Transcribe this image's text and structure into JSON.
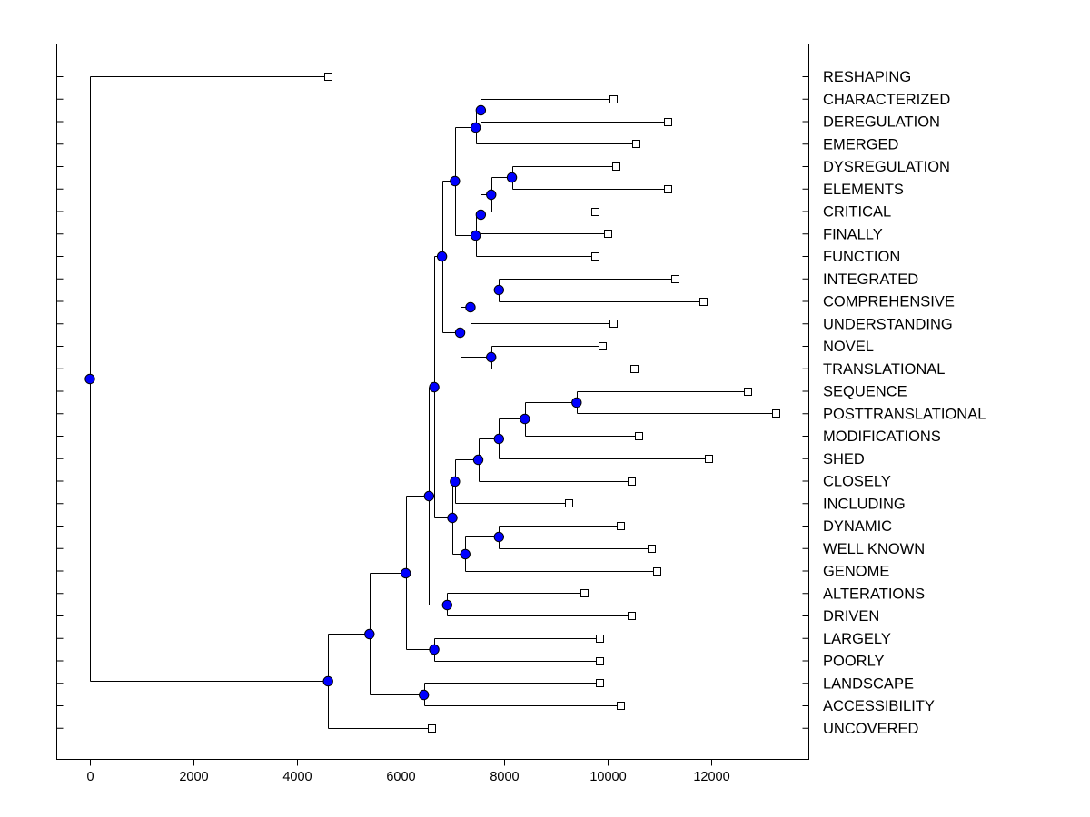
{
  "chart_data": {
    "type": "dendrogram",
    "title": "",
    "xlabel": "",
    "ylabel": "",
    "xlim": [
      -650,
      13900
    ],
    "xticks": [
      0,
      2000,
      4000,
      6000,
      8000,
      10000,
      12000
    ],
    "xtick_labels": [
      "0",
      "2000",
      "4000",
      "6000",
      "8000",
      "10000",
      "12000"
    ],
    "colors": {
      "node": "#0000ff",
      "node_edge": "#000000",
      "line": "#000000",
      "leaf": "#ffffff"
    },
    "leaves": [
      {
        "label": "RESHAPING",
        "value": 4600
      },
      {
        "label": "CHARACTERIZED",
        "value": 10100
      },
      {
        "label": "DEREGULATION",
        "value": 11150
      },
      {
        "label": "EMERGED",
        "value": 10550
      },
      {
        "label": "DYSREGULATION",
        "value": 10150
      },
      {
        "label": "ELEMENTS",
        "value": 11150
      },
      {
        "label": "CRITICAL",
        "value": 9750
      },
      {
        "label": "FINALLY",
        "value": 10000
      },
      {
        "label": "FUNCTION",
        "value": 9750
      },
      {
        "label": "INTEGRATED",
        "value": 11300
      },
      {
        "label": "COMPREHENSIVE",
        "value": 11850
      },
      {
        "label": "UNDERSTANDING",
        "value": 10100
      },
      {
        "label": "NOVEL",
        "value": 9900
      },
      {
        "label": "TRANSLATIONAL",
        "value": 10500
      },
      {
        "label": "SEQUENCE",
        "value": 12700
      },
      {
        "label": "POSTTRANSLATIONAL",
        "value": 13250
      },
      {
        "label": "MODIFICATIONS",
        "value": 10600
      },
      {
        "label": "SHED",
        "value": 11950
      },
      {
        "label": "CLOSELY",
        "value": 10450
      },
      {
        "label": "INCLUDING",
        "value": 9250
      },
      {
        "label": "DYNAMIC",
        "value": 10250
      },
      {
        "label": "WELL KNOWN",
        "value": 10850
      },
      {
        "label": "GENOME",
        "value": 10950
      },
      {
        "label": "ALTERATIONS",
        "value": 9550
      },
      {
        "label": "DRIVEN",
        "value": 10450
      },
      {
        "label": "LARGELY",
        "value": 9850
      },
      {
        "label": "POORLY",
        "value": 9850
      },
      {
        "label": "LANDSCAPE",
        "value": 9850
      },
      {
        "label": "ACCESSIBILITY",
        "value": 10250
      },
      {
        "label": "UNCOVERED",
        "value": 6600
      }
    ],
    "merges": [
      {
        "id": "n1",
        "height": 7550,
        "children": [
          1,
          2
        ]
      },
      {
        "id": "n2",
        "height": 7450,
        "children": [
          "n1",
          3
        ]
      },
      {
        "id": "n3",
        "height": 8150,
        "children": [
          4,
          5
        ]
      },
      {
        "id": "n4",
        "height": 7750,
        "children": [
          "n3",
          6
        ]
      },
      {
        "id": "n5",
        "height": 7550,
        "children": [
          "n4",
          7
        ]
      },
      {
        "id": "n6",
        "height": 7450,
        "children": [
          "n5",
          8
        ]
      },
      {
        "id": "n7",
        "height": 7050,
        "children": [
          "n2",
          "n6"
        ]
      },
      {
        "id": "n8",
        "height": 7900,
        "children": [
          9,
          10
        ]
      },
      {
        "id": "n9",
        "height": 7350,
        "children": [
          "n8",
          11
        ]
      },
      {
        "id": "n10",
        "height": 7750,
        "children": [
          12,
          13
        ]
      },
      {
        "id": "n11",
        "height": 7150,
        "children": [
          "n9",
          "n10"
        ]
      },
      {
        "id": "n12",
        "height": 6800,
        "children": [
          "n7",
          "n11"
        ]
      },
      {
        "id": "n13",
        "height": 9400,
        "children": [
          14,
          15
        ]
      },
      {
        "id": "n14",
        "height": 8400,
        "children": [
          "n13",
          16
        ]
      },
      {
        "id": "n15",
        "height": 7900,
        "children": [
          "n14",
          17
        ]
      },
      {
        "id": "n16",
        "height": 7500,
        "children": [
          "n15",
          18
        ]
      },
      {
        "id": "n17",
        "height": 7050,
        "children": [
          "n16",
          19
        ]
      },
      {
        "id": "n18",
        "height": 7900,
        "children": [
          20,
          21
        ]
      },
      {
        "id": "n19",
        "height": 7250,
        "children": [
          "n18",
          22
        ]
      },
      {
        "id": "n20",
        "height": 7000,
        "children": [
          "n17",
          "n19"
        ]
      },
      {
        "id": "n21",
        "height": 6650,
        "children": [
          "n12",
          "n20"
        ]
      },
      {
        "id": "n22",
        "height": 6900,
        "children": [
          23,
          24
        ]
      },
      {
        "id": "n23",
        "height": 6550,
        "children": [
          "n21",
          "n22"
        ]
      },
      {
        "id": "n24",
        "height": 6650,
        "children": [
          25,
          26
        ]
      },
      {
        "id": "n25",
        "height": 6100,
        "children": [
          "n23",
          "n24"
        ]
      },
      {
        "id": "n26",
        "height": 6450,
        "children": [
          27,
          28
        ]
      },
      {
        "id": "n27",
        "height": 5400,
        "children": [
          "n25",
          "n26"
        ]
      },
      {
        "id": "n28",
        "height": 4600,
        "children": [
          "n27",
          29
        ]
      },
      {
        "id": "n29",
        "height": 0,
        "children": [
          0,
          "n28"
        ]
      }
    ]
  }
}
